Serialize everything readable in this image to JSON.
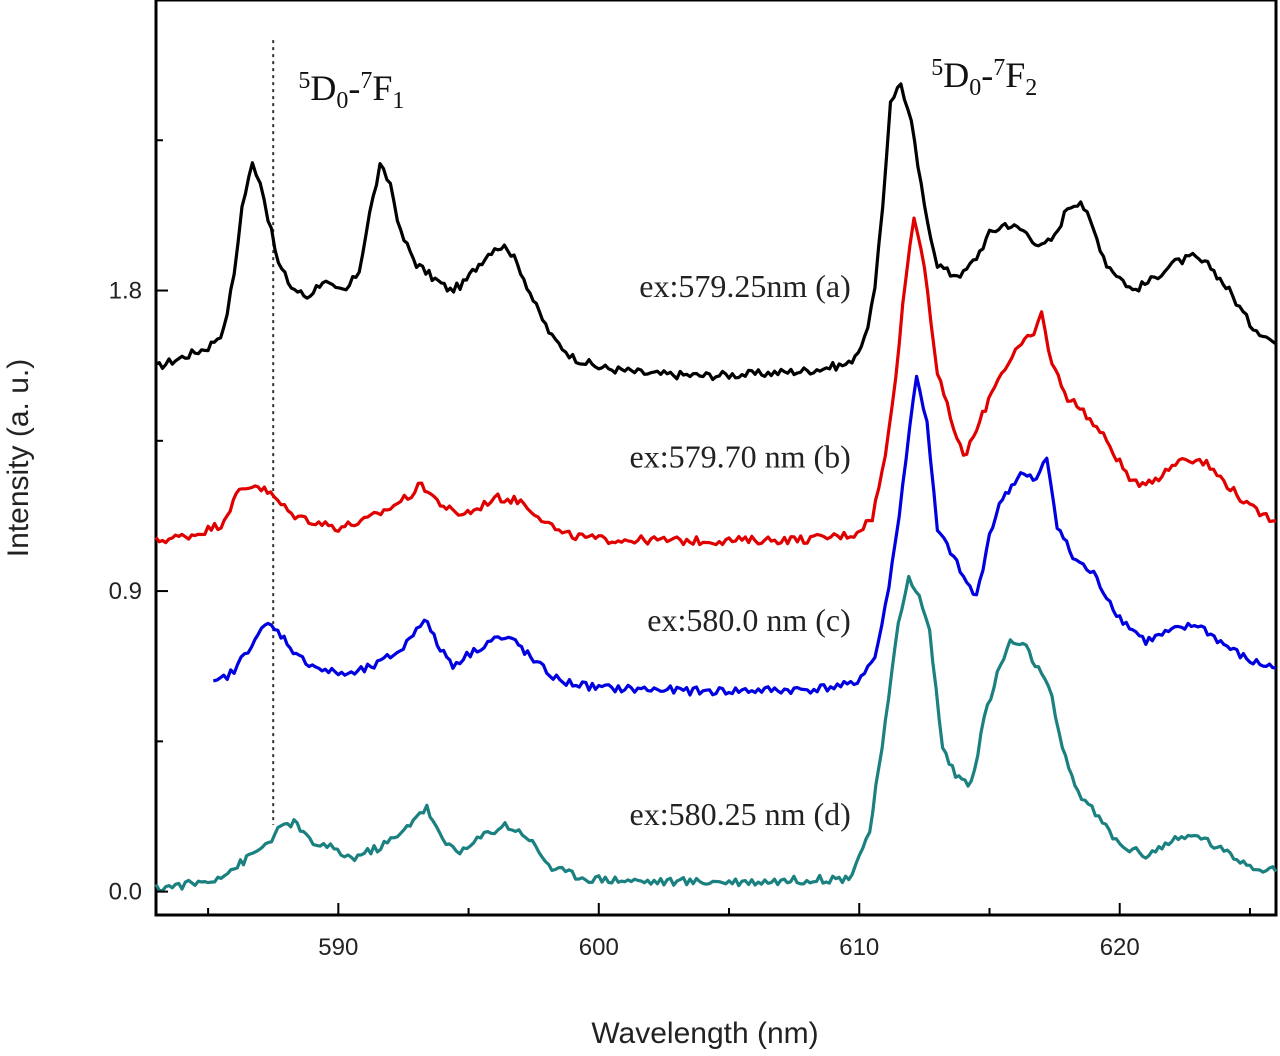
{
  "chart_data": {
    "type": "line",
    "title": "",
    "xlabel": "Wavelength (nm)",
    "ylabel": "Intensity (a. u.)",
    "xlim": [
      583,
      626
    ],
    "ylim": [
      -0.07,
      2.67
    ],
    "xticks": [
      590,
      600,
      610,
      620
    ],
    "yticks": [
      0.0,
      0.9,
      1.8
    ],
    "xtick_labels": [
      "590",
      "600",
      "610",
      "620"
    ],
    "ytick_labels": [
      "0.0",
      "0.9",
      "1.8"
    ],
    "reference_line": {
      "x": 587.5,
      "style": "dotted"
    },
    "annotations": [
      {
        "id": "f1",
        "x": 590.5,
        "y": 2.37,
        "sup1": "5",
        "main1": "D",
        "sub1": "0",
        "sep": "-",
        "sup2": "7",
        "main2": "F",
        "sub2": "1"
      },
      {
        "id": "f2",
        "x": 614.8,
        "y": 2.41,
        "sup1": "5",
        "main1": "D",
        "sub1": "0",
        "sep": "-",
        "sup2": "7",
        "main2": "F",
        "sub2": "2"
      }
    ],
    "series": [
      {
        "name": "ex:579.25nm (a)",
        "color": "#000000",
        "label_x": 600,
        "label_y": 1.78,
        "points": [
          [
            583,
            1.57
          ],
          [
            584,
            1.6
          ],
          [
            585,
            1.63
          ],
          [
            585.6,
            1.68
          ],
          [
            586.0,
            1.85
          ],
          [
            586.3,
            2.05
          ],
          [
            586.7,
            2.18
          ],
          [
            587.0,
            2.13
          ],
          [
            587.3,
            2.02
          ],
          [
            587.7,
            1.88
          ],
          [
            588.2,
            1.81
          ],
          [
            588.8,
            1.78
          ],
          [
            589.4,
            1.83
          ],
          [
            589.9,
            1.8
          ],
          [
            590.3,
            1.8
          ],
          [
            590.8,
            1.86
          ],
          [
            591.2,
            2.03
          ],
          [
            591.6,
            2.17
          ],
          [
            592.0,
            2.12
          ],
          [
            592.4,
            1.97
          ],
          [
            593.0,
            1.88
          ],
          [
            593.6,
            1.84
          ],
          [
            594.3,
            1.8
          ],
          [
            594.8,
            1.82
          ],
          [
            595.4,
            1.88
          ],
          [
            596.0,
            1.93
          ],
          [
            596.5,
            1.93
          ],
          [
            597.0,
            1.86
          ],
          [
            597.6,
            1.75
          ],
          [
            598.2,
            1.66
          ],
          [
            599.0,
            1.6
          ],
          [
            600,
            1.57
          ],
          [
            602,
            1.55
          ],
          [
            604,
            1.545
          ],
          [
            606,
            1.55
          ],
          [
            608,
            1.56
          ],
          [
            609.6,
            1.58
          ],
          [
            610.2,
            1.65
          ],
          [
            610.6,
            1.8
          ],
          [
            610.9,
            2.05
          ],
          [
            611.2,
            2.37
          ],
          [
            611.6,
            2.42
          ],
          [
            612.0,
            2.3
          ],
          [
            612.5,
            2.05
          ],
          [
            613.0,
            1.88
          ],
          [
            613.5,
            1.85
          ],
          [
            614.0,
            1.85
          ],
          [
            614.5,
            1.9
          ],
          [
            615.0,
            1.97
          ],
          [
            615.6,
            2.0
          ],
          [
            616.3,
            1.98
          ],
          [
            617.0,
            1.93
          ],
          [
            617.5,
            1.96
          ],
          [
            618.0,
            2.05
          ],
          [
            618.5,
            2.07
          ],
          [
            619.0,
            1.98
          ],
          [
            619.5,
            1.88
          ],
          [
            620.0,
            1.84
          ],
          [
            620.5,
            1.8
          ],
          [
            621.2,
            1.83
          ],
          [
            622.0,
            1.88
          ],
          [
            622.8,
            1.9
          ],
          [
            623.5,
            1.87
          ],
          [
            624.2,
            1.8
          ],
          [
            625.0,
            1.7
          ],
          [
            626,
            1.64
          ]
        ]
      },
      {
        "name": "ex:579.70 nm (b)",
        "color": "#e00000",
        "label_x": 600,
        "label_y": 1.27,
        "points": [
          [
            583,
            1.05
          ],
          [
            584.5,
            1.07
          ],
          [
            585.5,
            1.1
          ],
          [
            586.2,
            1.2
          ],
          [
            586.8,
            1.22
          ],
          [
            587.4,
            1.19
          ],
          [
            588.2,
            1.13
          ],
          [
            589.0,
            1.11
          ],
          [
            590.0,
            1.09
          ],
          [
            591.0,
            1.11
          ],
          [
            592.0,
            1.15
          ],
          [
            592.8,
            1.19
          ],
          [
            593.2,
            1.22
          ],
          [
            593.8,
            1.17
          ],
          [
            594.5,
            1.13
          ],
          [
            595.2,
            1.14
          ],
          [
            596.0,
            1.18
          ],
          [
            597.0,
            1.17
          ],
          [
            597.8,
            1.12
          ],
          [
            598.6,
            1.07
          ],
          [
            600,
            1.055
          ],
          [
            604,
            1.05
          ],
          [
            608,
            1.055
          ],
          [
            609.8,
            1.07
          ],
          [
            610.5,
            1.12
          ],
          [
            611.0,
            1.3
          ],
          [
            611.4,
            1.55
          ],
          [
            611.8,
            1.85
          ],
          [
            612.1,
            2.02
          ],
          [
            612.5,
            1.88
          ],
          [
            613.0,
            1.55
          ],
          [
            613.5,
            1.42
          ],
          [
            614.0,
            1.3
          ],
          [
            614.5,
            1.38
          ],
          [
            615.2,
            1.52
          ],
          [
            616.0,
            1.62
          ],
          [
            616.7,
            1.67
          ],
          [
            617.0,
            1.73
          ],
          [
            617.4,
            1.58
          ],
          [
            618.0,
            1.48
          ],
          [
            618.6,
            1.44
          ],
          [
            619.5,
            1.35
          ],
          [
            620.5,
            1.22
          ],
          [
            621.5,
            1.24
          ],
          [
            622.4,
            1.3
          ],
          [
            623.2,
            1.29
          ],
          [
            624.0,
            1.23
          ],
          [
            625,
            1.15
          ],
          [
            626,
            1.11
          ]
        ]
      },
      {
        "name": "ex:580.0 nm (c)",
        "color": "#0000e0",
        "label_x": 600,
        "label_y": 0.78,
        "points": [
          [
            585.2,
            0.62
          ],
          [
            586.0,
            0.66
          ],
          [
            586.8,
            0.76
          ],
          [
            587.3,
            0.8
          ],
          [
            587.8,
            0.77
          ],
          [
            588.5,
            0.7
          ],
          [
            589.5,
            0.66
          ],
          [
            590.5,
            0.65
          ],
          [
            591.5,
            0.68
          ],
          [
            592.5,
            0.73
          ],
          [
            593.0,
            0.79
          ],
          [
            593.3,
            0.82
          ],
          [
            593.8,
            0.74
          ],
          [
            594.4,
            0.68
          ],
          [
            595.2,
            0.72
          ],
          [
            596.0,
            0.76
          ],
          [
            596.8,
            0.75
          ],
          [
            597.5,
            0.69
          ],
          [
            598.5,
            0.63
          ],
          [
            600,
            0.61
          ],
          [
            604,
            0.6
          ],
          [
            608,
            0.605
          ],
          [
            609.8,
            0.62
          ],
          [
            610.6,
            0.7
          ],
          [
            611.0,
            0.85
          ],
          [
            611.4,
            1.05
          ],
          [
            611.8,
            1.3
          ],
          [
            612.2,
            1.55
          ],
          [
            612.6,
            1.4
          ],
          [
            613.0,
            1.08
          ],
          [
            613.5,
            1.02
          ],
          [
            614.0,
            0.94
          ],
          [
            614.5,
            0.88
          ],
          [
            615.0,
            1.07
          ],
          [
            615.5,
            1.18
          ],
          [
            616.2,
            1.25
          ],
          [
            616.8,
            1.23
          ],
          [
            617.2,
            1.3
          ],
          [
            617.6,
            1.1
          ],
          [
            618.2,
            1.0
          ],
          [
            619.0,
            0.95
          ],
          [
            620.0,
            0.82
          ],
          [
            621.0,
            0.75
          ],
          [
            622.0,
            0.78
          ],
          [
            623.0,
            0.8
          ],
          [
            624.0,
            0.74
          ],
          [
            625,
            0.69
          ],
          [
            626,
            0.67
          ]
        ]
      },
      {
        "name": "ex:580.25 nm (d)",
        "color": "#1a8080",
        "label_x": 600,
        "label_y": 0.2,
        "points": [
          [
            583,
            0.01
          ],
          [
            585.0,
            0.03
          ],
          [
            586.0,
            0.07
          ],
          [
            587.2,
            0.14
          ],
          [
            587.8,
            0.19
          ],
          [
            588.3,
            0.21
          ],
          [
            588.9,
            0.15
          ],
          [
            589.7,
            0.13
          ],
          [
            590.5,
            0.1
          ],
          [
            591.5,
            0.13
          ],
          [
            592.4,
            0.17
          ],
          [
            593.0,
            0.23
          ],
          [
            593.4,
            0.25
          ],
          [
            594.0,
            0.15
          ],
          [
            594.8,
            0.12
          ],
          [
            595.6,
            0.17
          ],
          [
            596.4,
            0.2
          ],
          [
            597.2,
            0.17
          ],
          [
            598.2,
            0.07
          ],
          [
            599.5,
            0.04
          ],
          [
            602,
            0.03
          ],
          [
            606,
            0.03
          ],
          [
            609.6,
            0.04
          ],
          [
            610.4,
            0.18
          ],
          [
            611.0,
            0.5
          ],
          [
            611.5,
            0.8
          ],
          [
            611.9,
            0.95
          ],
          [
            612.3,
            0.88
          ],
          [
            612.7,
            0.78
          ],
          [
            613.2,
            0.43
          ],
          [
            613.7,
            0.35
          ],
          [
            614.3,
            0.32
          ],
          [
            614.8,
            0.52
          ],
          [
            615.3,
            0.65
          ],
          [
            615.8,
            0.75
          ],
          [
            616.4,
            0.73
          ],
          [
            617.0,
            0.65
          ],
          [
            617.4,
            0.58
          ],
          [
            617.8,
            0.42
          ],
          [
            618.4,
            0.3
          ],
          [
            619.2,
            0.22
          ],
          [
            620.0,
            0.14
          ],
          [
            621.0,
            0.11
          ],
          [
            622.0,
            0.15
          ],
          [
            623.0,
            0.17
          ],
          [
            624.0,
            0.12
          ],
          [
            625,
            0.08
          ],
          [
            626,
            0.06
          ]
        ]
      }
    ]
  }
}
